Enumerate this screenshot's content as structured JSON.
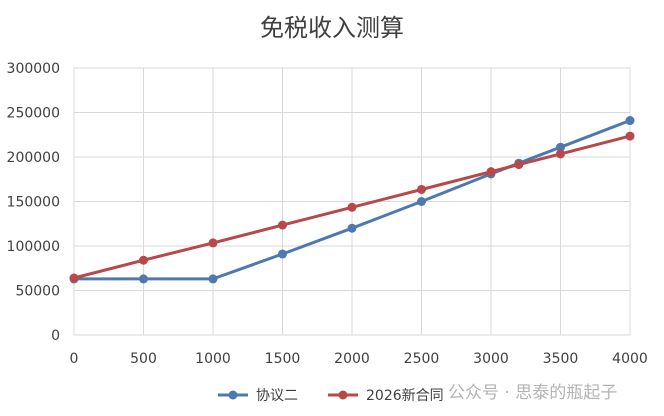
{
  "chart_data": {
    "type": "line",
    "title": "免税收入测算",
    "xlabel": "",
    "ylabel": "",
    "x": [
      0,
      500,
      1000,
      1500,
      2000,
      2500,
      3000,
      3200,
      3500,
      4000
    ],
    "xlim": [
      0,
      4000
    ],
    "xticks": [
      "0",
      "500",
      "1000",
      "1500",
      "2000",
      "2500",
      "3000",
      "3500",
      "4000"
    ],
    "ylim": [
      0,
      300000
    ],
    "yticks": [
      "0",
      "50000",
      "100000",
      "150000",
      "200000",
      "250000",
      "300000"
    ],
    "grid": "vertical-and-horizontal",
    "legend_position": "bottom",
    "series": [
      {
        "name": "协议二",
        "color": "#4e79b0",
        "values": [
          63000,
          63000,
          63000,
          91000,
          120000,
          150000,
          181000,
          193000,
          211000,
          241000
        ]
      },
      {
        "name": "2026新合同",
        "color": "#b8484a",
        "values": [
          64000,
          84000,
          103500,
          123500,
          143500,
          163500,
          183500,
          191500,
          203500,
          223500
        ]
      }
    ]
  },
  "watermark": "公众号 · 思泰的瓶起子"
}
